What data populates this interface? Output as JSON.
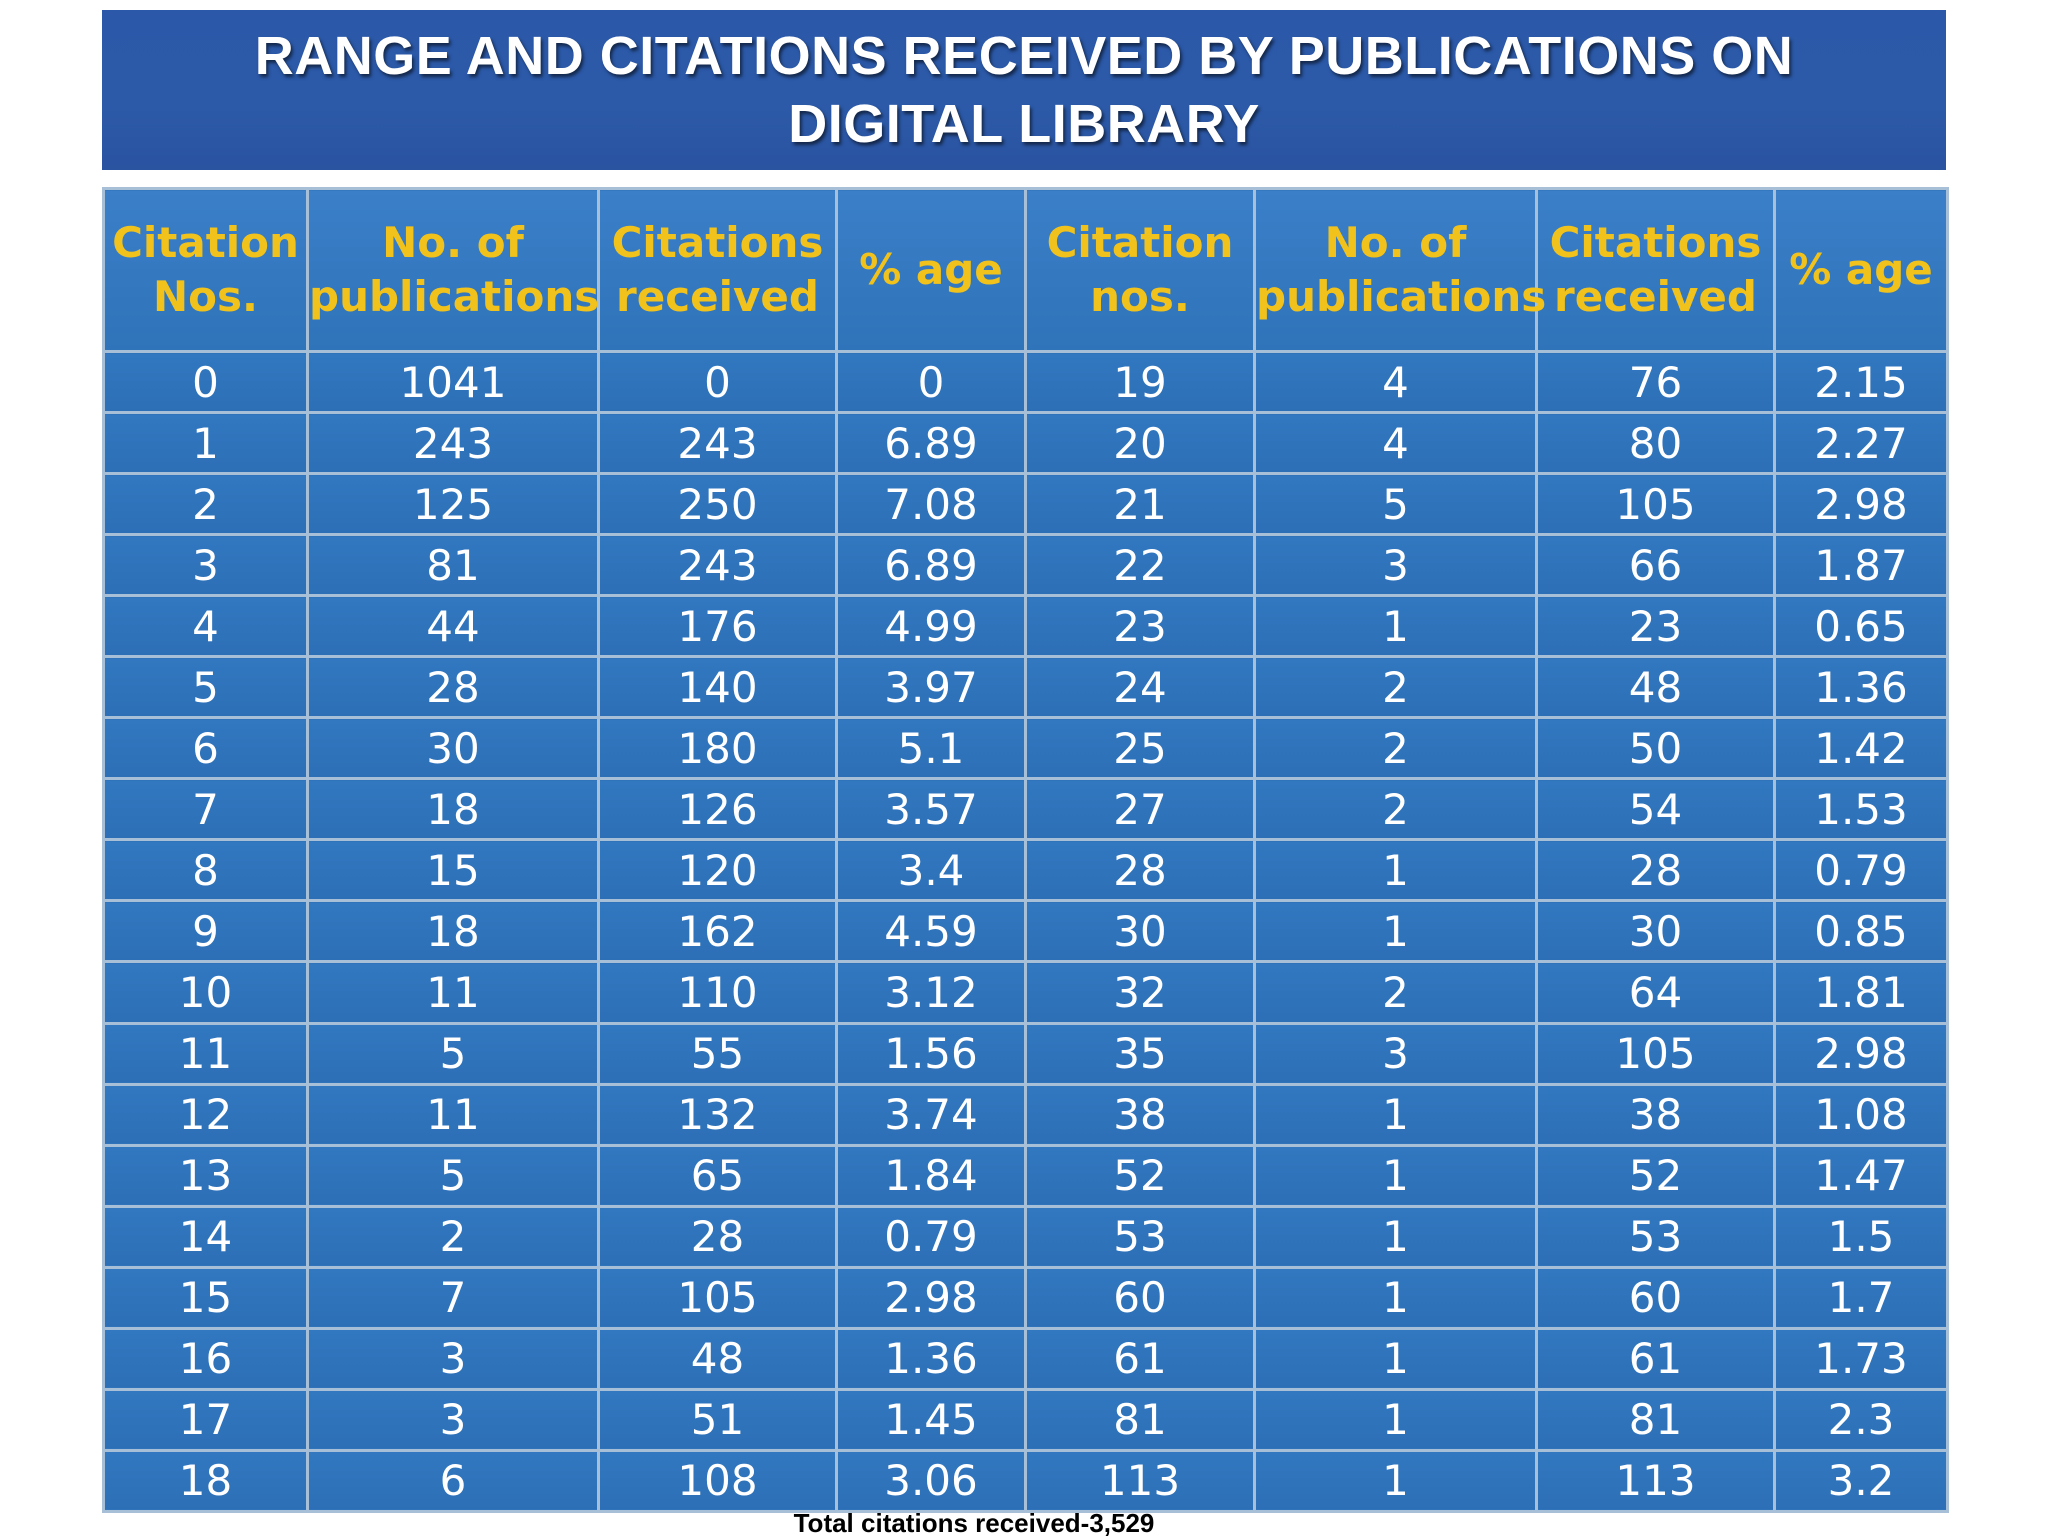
{
  "title": "RANGE AND CITATIONS RECEIVED BY PUBLICATIONS ON DIGITAL LIBRARY",
  "headers": [
    "Citation Nos.",
    "No. of publications",
    "Citations received",
    "% age",
    "Citation nos.",
    "No. of publications",
    "Citations received",
    "% age"
  ],
  "rows": [
    [
      "0",
      "1041",
      "0",
      "0",
      "19",
      "4",
      "76",
      "2.15"
    ],
    [
      "1",
      "243",
      "243",
      "6.89",
      "20",
      "4",
      "80",
      "2.27"
    ],
    [
      "2",
      "125",
      "250",
      "7.08",
      "21",
      "5",
      "105",
      "2.98"
    ],
    [
      "3",
      "81",
      "243",
      "6.89",
      "22",
      "3",
      "66",
      "1.87"
    ],
    [
      "4",
      "44",
      "176",
      "4.99",
      "23",
      "1",
      "23",
      "0.65"
    ],
    [
      "5",
      "28",
      "140",
      "3.97",
      "24",
      "2",
      "48",
      "1.36"
    ],
    [
      "6",
      "30",
      "180",
      "5.1",
      "25",
      "2",
      "50",
      "1.42"
    ],
    [
      "7",
      "18",
      "126",
      "3.57",
      "27",
      "2",
      "54",
      "1.53"
    ],
    [
      "8",
      "15",
      "120",
      "3.4",
      "28",
      "1",
      "28",
      "0.79"
    ],
    [
      "9",
      "18",
      "162",
      "4.59",
      "30",
      "1",
      "30",
      "0.85"
    ],
    [
      "10",
      "11",
      "110",
      "3.12",
      "32",
      "2",
      "64",
      "1.81"
    ],
    [
      "11",
      "5",
      "55",
      "1.56",
      "35",
      "3",
      "105",
      "2.98"
    ],
    [
      "12",
      "11",
      "132",
      "3.74",
      "38",
      "1",
      "38",
      "1.08"
    ],
    [
      "13",
      "5",
      "65",
      "1.84",
      "52",
      "1",
      "52",
      "1.47"
    ],
    [
      "14",
      "2",
      "28",
      "0.79",
      "53",
      "1",
      "53",
      "1.5"
    ],
    [
      "15",
      "7",
      "105",
      "2.98",
      "60",
      "1",
      "60",
      "1.7"
    ],
    [
      "16",
      "3",
      "48",
      "1.36",
      "61",
      "1",
      "61",
      "1.73"
    ],
    [
      "17",
      "3",
      "51",
      "1.45",
      "81",
      "1",
      "81",
      "2.3"
    ],
    [
      "18",
      "6",
      "108",
      "3.06",
      "113",
      "1",
      "113",
      "3.2"
    ]
  ],
  "footer": "Total citations received-3,529",
  "colors": {
    "banner": "#2c5aa8",
    "header_text": "#f1c21b",
    "cell_bg": "#2f73b9",
    "grid": "#a8bfd8"
  }
}
